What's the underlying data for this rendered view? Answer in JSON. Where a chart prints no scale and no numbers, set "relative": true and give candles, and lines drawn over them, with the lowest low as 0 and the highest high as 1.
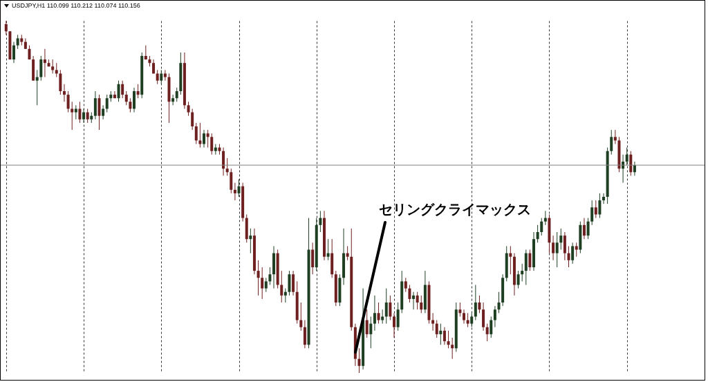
{
  "chart_data": {
    "type": "candlestick",
    "title": "USDJPY,H1  110.099 110.212 110.074 110.156",
    "annotations": [
      "セリングクライマックス"
    ],
    "relative": true,
    "grid": "x",
    "ref_lines": [
      {
        "axis": "y",
        "value": 0.59,
        "color": "#808080"
      }
    ],
    "categories": [
      null,
      null,
      null,
      null,
      null,
      null,
      null,
      null,
      null,
      null,
      null,
      null,
      null,
      null,
      null,
      null,
      null,
      null,
      null,
      null,
      null,
      null,
      null,
      null,
      null,
      null,
      null,
      null,
      null,
      null,
      null,
      null,
      null,
      null,
      null,
      null,
      null,
      null,
      null,
      null,
      null,
      null,
      null,
      null,
      null,
      null,
      null,
      null,
      null,
      null,
      null,
      null,
      null,
      null,
      null,
      null,
      null,
      null,
      null,
      null,
      null,
      null,
      null,
      null,
      null,
      null,
      null,
      null,
      null,
      null,
      null,
      null,
      null,
      null,
      null,
      null,
      null,
      null,
      null,
      null,
      null,
      null,
      null,
      null,
      null,
      null,
      null,
      null,
      null,
      null,
      null,
      null,
      null,
      null,
      null,
      null,
      null,
      null,
      null,
      null,
      null,
      null,
      null,
      null,
      null,
      null,
      null,
      null,
      null,
      null,
      null,
      null,
      null,
      null,
      null,
      null,
      null,
      null,
      null,
      null,
      null,
      null,
      null,
      null,
      null,
      null,
      null,
      null,
      null,
      null,
      null,
      null,
      null,
      null,
      null,
      null,
      null,
      null,
      null,
      null,
      null,
      null,
      null,
      null,
      null,
      null,
      null,
      null,
      null,
      null,
      null,
      null,
      null,
      null,
      null,
      null,
      null,
      null,
      null,
      null,
      null,
      null,
      null
    ],
    "ohlc": [
      [
        0.99,
        1.0,
        0.96,
        0.97
      ],
      [
        0.97,
        0.97,
        0.89,
        0.89
      ],
      [
        0.89,
        0.94,
        0.88,
        0.93
      ],
      [
        0.93,
        0.96,
        0.92,
        0.95
      ],
      [
        0.95,
        0.96,
        0.93,
        0.94
      ],
      [
        0.94,
        0.95,
        0.92,
        0.92
      ],
      [
        0.92,
        0.93,
        0.89,
        0.89
      ],
      [
        0.89,
        0.9,
        0.83,
        0.83
      ],
      [
        0.83,
        0.86,
        0.76,
        0.84
      ],
      [
        0.84,
        0.9,
        0.83,
        0.89
      ],
      [
        0.89,
        0.92,
        0.84,
        0.88
      ],
      [
        0.88,
        0.89,
        0.87,
        0.87
      ],
      [
        0.87,
        0.89,
        0.85,
        0.86
      ],
      [
        0.86,
        0.88,
        0.84,
        0.85
      ],
      [
        0.85,
        0.86,
        0.79,
        0.8
      ],
      [
        0.8,
        0.82,
        0.77,
        0.79
      ],
      [
        0.79,
        0.8,
        0.74,
        0.75
      ],
      [
        0.75,
        0.77,
        0.69,
        0.74
      ],
      [
        0.74,
        0.76,
        0.72,
        0.75
      ],
      [
        0.75,
        0.77,
        0.71,
        0.72
      ],
      [
        0.72,
        0.75,
        0.71,
        0.74
      ],
      [
        0.74,
        0.75,
        0.71,
        0.72
      ],
      [
        0.72,
        0.74,
        0.71,
        0.73
      ],
      [
        0.73,
        0.8,
        0.72,
        0.78
      ],
      [
        0.78,
        0.79,
        0.69,
        0.73
      ],
      [
        0.73,
        0.76,
        0.72,
        0.75
      ],
      [
        0.75,
        0.79,
        0.74,
        0.78
      ],
      [
        0.78,
        0.8,
        0.77,
        0.79
      ],
      [
        0.79,
        0.8,
        0.78,
        0.78
      ],
      [
        0.78,
        0.83,
        0.77,
        0.82
      ],
      [
        0.82,
        0.83,
        0.78,
        0.79
      ],
      [
        0.79,
        0.8,
        0.76,
        0.77
      ],
      [
        0.77,
        0.78,
        0.74,
        0.75
      ],
      [
        0.75,
        0.81,
        0.74,
        0.8
      ],
      [
        0.8,
        0.82,
        0.78,
        0.79
      ],
      [
        0.79,
        0.91,
        0.78,
        0.9
      ],
      [
        0.9,
        0.93,
        0.89,
        0.89
      ],
      [
        0.89,
        0.9,
        0.87,
        0.88
      ],
      [
        0.88,
        0.89,
        0.85,
        0.85
      ],
      [
        0.85,
        0.86,
        0.82,
        0.83
      ],
      [
        0.83,
        0.86,
        0.82,
        0.85
      ],
      [
        0.85,
        0.86,
        0.83,
        0.84
      ],
      [
        0.84,
        0.85,
        0.71,
        0.77
      ],
      [
        0.77,
        0.79,
        0.76,
        0.78
      ],
      [
        0.78,
        0.81,
        0.77,
        0.8
      ],
      [
        0.8,
        0.91,
        0.79,
        0.88
      ],
      [
        0.88,
        0.91,
        0.75,
        0.76
      ],
      [
        0.76,
        0.77,
        0.73,
        0.74
      ],
      [
        0.74,
        0.75,
        0.69,
        0.7
      ],
      [
        0.7,
        0.71,
        0.65,
        0.66
      ],
      [
        0.66,
        0.71,
        0.64,
        0.65
      ],
      [
        0.65,
        0.69,
        0.64,
        0.68
      ],
      [
        0.68,
        0.69,
        0.64,
        0.67
      ],
      [
        0.67,
        0.68,
        0.62,
        0.63
      ],
      [
        0.63,
        0.65,
        0.62,
        0.64
      ],
      [
        0.64,
        0.65,
        0.62,
        0.63
      ],
      [
        0.63,
        0.64,
        0.56,
        0.58
      ],
      [
        0.58,
        0.61,
        0.56,
        0.57
      ],
      [
        0.57,
        0.58,
        0.51,
        0.52
      ],
      [
        0.52,
        0.54,
        0.49,
        0.51
      ],
      [
        0.51,
        0.55,
        0.5,
        0.53
      ],
      [
        0.53,
        0.54,
        0.43,
        0.44
      ],
      [
        0.44,
        0.45,
        0.37,
        0.38
      ],
      [
        0.38,
        0.41,
        0.34,
        0.39
      ],
      [
        0.39,
        0.41,
        0.28,
        0.29
      ],
      [
        0.29,
        0.32,
        0.22,
        0.27
      ],
      [
        0.27,
        0.3,
        0.21,
        0.24
      ],
      [
        0.24,
        0.27,
        0.23,
        0.26
      ],
      [
        0.26,
        0.3,
        0.25,
        0.28
      ],
      [
        0.28,
        0.36,
        0.24,
        0.34
      ],
      [
        0.34,
        0.35,
        0.24,
        0.25
      ],
      [
        0.25,
        0.29,
        0.2,
        0.22
      ],
      [
        0.22,
        0.24,
        0.2,
        0.23
      ],
      [
        0.23,
        0.29,
        0.22,
        0.28
      ],
      [
        0.28,
        0.29,
        0.22,
        0.23
      ],
      [
        0.23,
        0.26,
        0.14,
        0.15
      ],
      [
        0.15,
        0.2,
        0.12,
        0.13
      ],
      [
        0.13,
        0.15,
        0.07,
        0.08
      ],
      [
        0.08,
        0.44,
        0.07,
        0.35
      ],
      [
        0.35,
        0.37,
        0.28,
        0.3
      ],
      [
        0.3,
        0.44,
        0.29,
        0.42
      ],
      [
        0.42,
        0.46,
        0.4,
        0.44
      ],
      [
        0.44,
        0.46,
        0.32,
        0.33
      ],
      [
        0.33,
        0.38,
        0.32,
        0.34
      ],
      [
        0.34,
        0.38,
        0.27,
        0.28
      ],
      [
        0.28,
        0.29,
        0.19,
        0.2
      ],
      [
        0.2,
        0.28,
        0.19,
        0.27
      ],
      [
        0.27,
        0.41,
        0.25,
        0.34
      ],
      [
        0.34,
        0.36,
        0.32,
        0.33
      ],
      [
        0.33,
        0.41,
        0.12,
        0.13
      ],
      [
        0.13,
        0.14,
        0.02,
        0.04
      ],
      [
        0.04,
        0.07,
        0.0,
        0.02
      ],
      [
        0.02,
        0.24,
        0.01,
        0.15
      ],
      [
        0.15,
        0.18,
        0.1,
        0.11
      ],
      [
        0.11,
        0.16,
        0.07,
        0.14
      ],
      [
        0.14,
        0.22,
        0.12,
        0.17
      ],
      [
        0.17,
        0.2,
        0.14,
        0.15
      ],
      [
        0.15,
        0.18,
        0.14,
        0.16
      ],
      [
        0.16,
        0.24,
        0.14,
        0.2
      ],
      [
        0.2,
        0.22,
        0.15,
        0.16
      ],
      [
        0.16,
        0.17,
        0.1,
        0.13
      ],
      [
        0.13,
        0.2,
        0.12,
        0.18
      ],
      [
        0.18,
        0.29,
        0.17,
        0.26
      ],
      [
        0.26,
        0.27,
        0.23,
        0.24
      ],
      [
        0.24,
        0.25,
        0.2,
        0.21
      ],
      [
        0.21,
        0.23,
        0.18,
        0.22
      ],
      [
        0.22,
        0.23,
        0.18,
        0.2
      ],
      [
        0.2,
        0.22,
        0.17,
        0.18
      ],
      [
        0.18,
        0.29,
        0.17,
        0.25
      ],
      [
        0.25,
        0.26,
        0.14,
        0.15
      ],
      [
        0.15,
        0.17,
        0.12,
        0.14
      ],
      [
        0.14,
        0.15,
        0.1,
        0.11
      ],
      [
        0.11,
        0.14,
        0.08,
        0.12
      ],
      [
        0.12,
        0.13,
        0.08,
        0.09
      ],
      [
        0.09,
        0.12,
        0.07,
        0.08
      ],
      [
        0.08,
        0.1,
        0.04,
        0.07
      ],
      [
        0.07,
        0.2,
        0.06,
        0.18
      ],
      [
        0.18,
        0.2,
        0.16,
        0.17
      ],
      [
        0.17,
        0.18,
        0.14,
        0.15
      ],
      [
        0.15,
        0.17,
        0.13,
        0.14
      ],
      [
        0.14,
        0.17,
        0.13,
        0.16
      ],
      [
        0.16,
        0.25,
        0.15,
        0.2
      ],
      [
        0.2,
        0.22,
        0.17,
        0.18
      ],
      [
        0.18,
        0.2,
        0.12,
        0.13
      ],
      [
        0.13,
        0.14,
        0.09,
        0.11
      ],
      [
        0.11,
        0.16,
        0.1,
        0.15
      ],
      [
        0.15,
        0.19,
        0.13,
        0.18
      ],
      [
        0.18,
        0.23,
        0.17,
        0.2
      ],
      [
        0.2,
        0.28,
        0.19,
        0.27
      ],
      [
        0.27,
        0.36,
        0.26,
        0.34
      ],
      [
        0.34,
        0.36,
        0.28,
        0.33
      ],
      [
        0.33,
        0.34,
        0.22,
        0.25
      ],
      [
        0.25,
        0.29,
        0.24,
        0.28
      ],
      [
        0.28,
        0.31,
        0.26,
        0.29
      ],
      [
        0.29,
        0.35,
        0.25,
        0.34
      ],
      [
        0.34,
        0.35,
        0.29,
        0.3
      ],
      [
        0.3,
        0.4,
        0.29,
        0.38
      ],
      [
        0.38,
        0.42,
        0.37,
        0.4
      ],
      [
        0.4,
        0.44,
        0.39,
        0.43
      ],
      [
        0.43,
        0.46,
        0.42,
        0.44
      ],
      [
        0.44,
        0.45,
        0.34,
        0.37
      ],
      [
        0.37,
        0.39,
        0.32,
        0.34
      ],
      [
        0.34,
        0.4,
        0.3,
        0.37
      ],
      [
        0.37,
        0.41,
        0.35,
        0.39
      ],
      [
        0.39,
        0.4,
        0.32,
        0.34
      ],
      [
        0.34,
        0.36,
        0.3,
        0.32
      ],
      [
        0.32,
        0.37,
        0.31,
        0.36
      ],
      [
        0.36,
        0.37,
        0.33,
        0.35
      ],
      [
        0.35,
        0.43,
        0.34,
        0.42
      ],
      [
        0.42,
        0.44,
        0.38,
        0.39
      ],
      [
        0.39,
        0.44,
        0.38,
        0.43
      ],
      [
        0.43,
        0.49,
        0.42,
        0.47
      ],
      [
        0.47,
        0.49,
        0.44,
        0.45
      ],
      [
        0.45,
        0.51,
        0.44,
        0.49
      ],
      [
        0.49,
        0.51,
        0.48,
        0.5
      ],
      [
        0.5,
        0.64,
        0.48,
        0.63
      ],
      [
        0.63,
        0.69,
        0.62,
        0.67
      ],
      [
        0.67,
        0.69,
        0.65,
        0.66
      ],
      [
        0.66,
        0.67,
        0.57,
        0.58
      ],
      [
        0.58,
        0.62,
        0.54,
        0.6
      ],
      [
        0.6,
        0.64,
        0.59,
        0.62
      ],
      [
        0.62,
        0.63,
        0.56,
        0.57
      ],
      [
        0.57,
        0.6,
        0.56,
        0.59
      ]
    ],
    "colors": [
      "#6e1f1f",
      "#6e1f1f",
      "#1e3f22",
      "#1e3f22",
      "#6e1f1f",
      "#6e1f1f",
      "#6e1f1f",
      "#6e1f1f",
      "#1e3f22",
      "#1e3f22",
      "#6e1f1f",
      "#6e1f1f",
      "#6e1f1f",
      "#6e1f1f",
      "#6e1f1f",
      "#6e1f1f",
      "#6e1f1f",
      "#6e1f1f",
      "#1e3f22",
      "#6e1f1f",
      "#1e3f22",
      "#6e1f1f",
      "#1e3f22",
      "#1e3f22",
      "#6e1f1f",
      "#1e3f22",
      "#1e3f22",
      "#1e3f22",
      "#6e1f1f",
      "#1e3f22",
      "#6e1f1f",
      "#6e1f1f",
      "#6e1f1f",
      "#1e3f22",
      "#6e1f1f",
      "#1e3f22",
      "#6e1f1f",
      "#6e1f1f",
      "#6e1f1f",
      "#6e1f1f",
      "#1e3f22",
      "#6e1f1f",
      "#6e1f1f",
      "#1e3f22",
      "#1e3f22",
      "#1e3f22",
      "#6e1f1f",
      "#6e1f1f",
      "#6e1f1f",
      "#6e1f1f",
      "#6e1f1f",
      "#1e3f22",
      "#6e1f1f",
      "#6e1f1f",
      "#1e3f22",
      "#6e1f1f",
      "#6e1f1f",
      "#6e1f1f",
      "#6e1f1f",
      "#6e1f1f",
      "#1e3f22",
      "#6e1f1f",
      "#6e1f1f",
      "#1e3f22",
      "#6e1f1f",
      "#6e1f1f",
      "#6e1f1f",
      "#1e3f22",
      "#1e3f22",
      "#1e3f22",
      "#6e1f1f",
      "#6e1f1f",
      "#1e3f22",
      "#1e3f22",
      "#6e1f1f",
      "#6e1f1f",
      "#6e1f1f",
      "#6e1f1f",
      "#1e3f22",
      "#6e1f1f",
      "#1e3f22",
      "#1e3f22",
      "#6e1f1f",
      "#1e3f22",
      "#6e1f1f",
      "#6e1f1f",
      "#1e3f22",
      "#1e3f22",
      "#6e1f1f",
      "#6e1f1f",
      "#6e1f1f",
      "#6e1f1f",
      "#1e3f22",
      "#6e1f1f",
      "#1e3f22",
      "#1e3f22",
      "#6e1f1f",
      "#1e3f22",
      "#1e3f22",
      "#6e1f1f",
      "#6e1f1f",
      "#1e3f22",
      "#1e3f22",
      "#6e1f1f",
      "#6e1f1f",
      "#1e3f22",
      "#6e1f1f",
      "#6e1f1f",
      "#1e3f22",
      "#6e1f1f",
      "#6e1f1f",
      "#6e1f1f",
      "#1e3f22",
      "#6e1f1f",
      "#6e1f1f",
      "#6e1f1f",
      "#1e3f22",
      "#6e1f1f",
      "#6e1f1f",
      "#6e1f1f",
      "#1e3f22",
      "#1e3f22",
      "#6e1f1f",
      "#6e1f1f",
      "#6e1f1f",
      "#1e3f22",
      "#1e3f22",
      "#1e3f22",
      "#1e3f22",
      "#1e3f22",
      "#6e1f1f",
      "#6e1f1f",
      "#1e3f22",
      "#1e3f22",
      "#1e3f22",
      "#6e1f1f",
      "#1e3f22",
      "#1e3f22",
      "#1e3f22",
      "#1e3f22",
      "#6e1f1f",
      "#6e1f1f",
      "#1e3f22",
      "#1e3f22",
      "#6e1f1f",
      "#6e1f1f",
      "#1e3f22",
      "#6e1f1f",
      "#1e3f22",
      "#6e1f1f",
      "#1e3f22",
      "#1e3f22",
      "#6e1f1f",
      "#1e3f22",
      "#1e3f22",
      "#1e3f22",
      "#1e3f22",
      "#6e1f1f",
      "#6e1f1f",
      "#1e3f22",
      "#1e3f22",
      "#6e1f1f",
      "#1e3f22"
    ]
  }
}
